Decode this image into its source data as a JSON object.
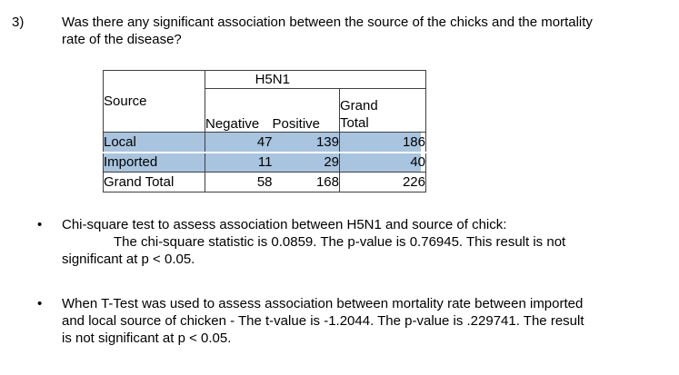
{
  "question": {
    "number": "3)",
    "line1": "Was there any significant association between the source of the chicks and the mortality",
    "line2": "rate of the disease?"
  },
  "table": {
    "corner_label": "Source",
    "group_header": "H5N1",
    "col_headers": [
      "Negative",
      "Positive"
    ],
    "grand_total_col_header": "Grand Total",
    "rows": [
      {
        "label": "Local",
        "negative": "47",
        "positive": "139",
        "grand_total": "186"
      },
      {
        "label": "Imported",
        "negative": "11",
        "positive": "29",
        "grand_total": "40"
      },
      {
        "label": "Grand Total",
        "negative": "58",
        "positive": "168",
        "grand_total": "226"
      }
    ],
    "highlight_color": "#a8c4de"
  },
  "bullets": [
    {
      "marker": "•",
      "line1": "Chi-square test to assess association between H5N1 and source of chick:",
      "line2": "The chi-square statistic is 0.0859. The p-value is 0.76945. This result is not",
      "line3": "significant at p < 0.05."
    },
    {
      "marker": "•",
      "line1": "When T-Test was used to assess association between mortality rate between imported",
      "line2": "and local source of chicken - The t-value is -1.2044. The p-value is .229741. The result",
      "line3": "is not significant at p < 0.05."
    }
  ]
}
